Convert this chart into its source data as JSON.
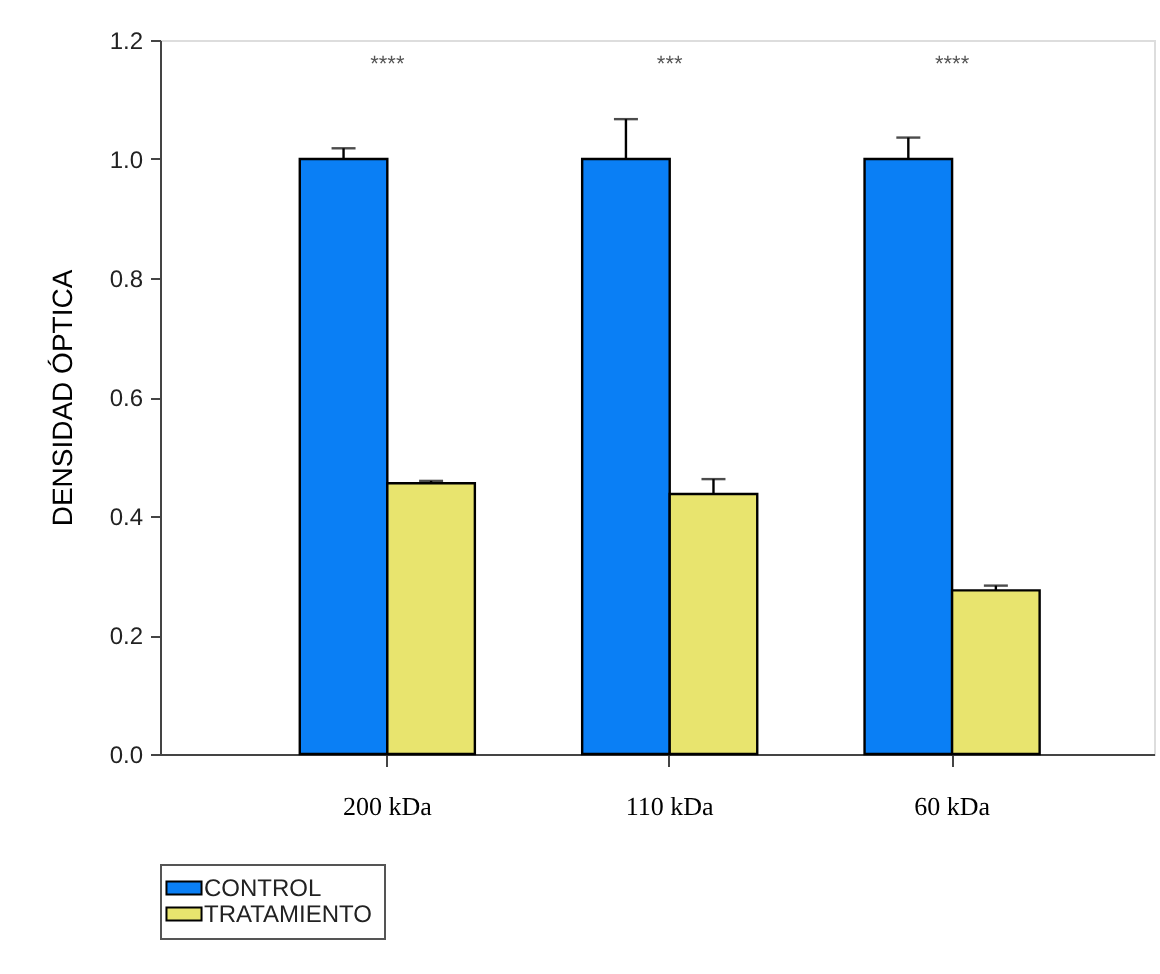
{
  "chart_data": {
    "type": "bar",
    "ylabel": "DENSIDAD ÓPTICA",
    "categories": [
      "200 kDa",
      "110 kDa",
      "60 kDa"
    ],
    "series": [
      {
        "name": "CONTROL",
        "color": "#0a7ff5",
        "values": [
          1.0,
          1.0,
          1.0
        ],
        "errors": [
          0.018,
          0.067,
          0.036
        ]
      },
      {
        "name": "TRATAMIENTO",
        "color": "#e8e46e",
        "values": [
          0.455,
          0.437,
          0.275
        ],
        "errors": [
          0.004,
          0.025,
          0.008
        ]
      }
    ],
    "ylim": [
      0,
      1.2
    ],
    "yticks": [
      {
        "value": 0,
        "label": "0.0"
      },
      {
        "value": 0.2,
        "label": "0.2"
      },
      {
        "value": 0.4,
        "label": "0.4"
      },
      {
        "value": 0.6,
        "label": "0.6"
      },
      {
        "value": 0.8,
        "label": "0.8"
      },
      {
        "value": 1.0,
        "label": "1.0"
      },
      {
        "value": 1.2,
        "label": "1.2"
      }
    ],
    "annotations": [
      "****",
      "***",
      "****"
    ],
    "grid": false,
    "legend": "bottom left"
  }
}
